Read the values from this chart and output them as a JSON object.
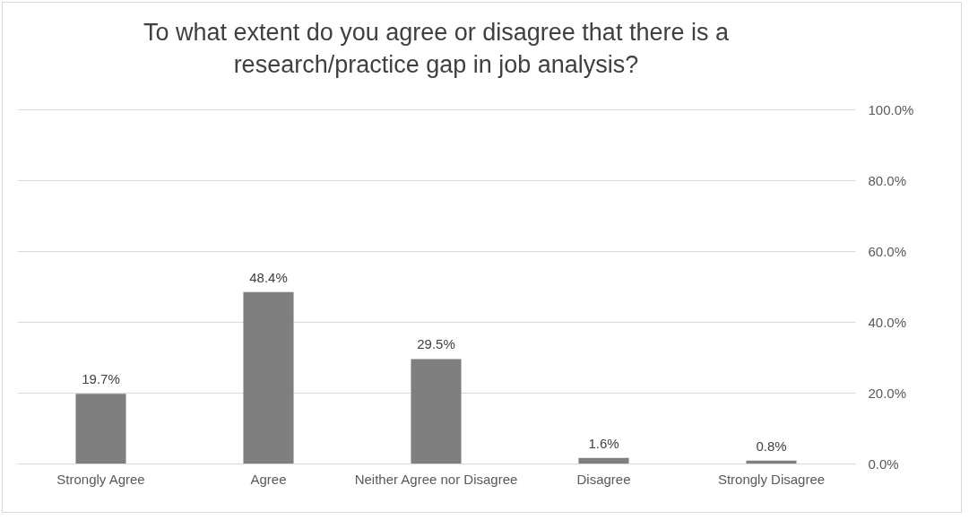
{
  "chart_data": {
    "type": "bar",
    "title": "To what extent do you agree or disagree that there is a research/practice gap in job analysis?",
    "categories": [
      "Strongly Agree",
      "Agree",
      "Neither Agree nor Disagree",
      "Disagree",
      "Strongly Disagree"
    ],
    "values": [
      19.7,
      48.4,
      29.5,
      1.6,
      0.8
    ],
    "value_labels": [
      "19.7%",
      "48.4%",
      "29.5%",
      "1.6%",
      "0.8%"
    ],
    "color": "#7f7f7f",
    "ylim": [
      0,
      100
    ],
    "yticks": [
      {
        "value": 0,
        "label": "0.0%"
      },
      {
        "value": 20,
        "label": "20.0%"
      },
      {
        "value": 40,
        "label": "40.0%"
      },
      {
        "value": 60,
        "label": "60.0%"
      },
      {
        "value": 80,
        "label": "80.0%"
      },
      {
        "value": 100,
        "label": "100.0%"
      }
    ],
    "grid": "y"
  }
}
